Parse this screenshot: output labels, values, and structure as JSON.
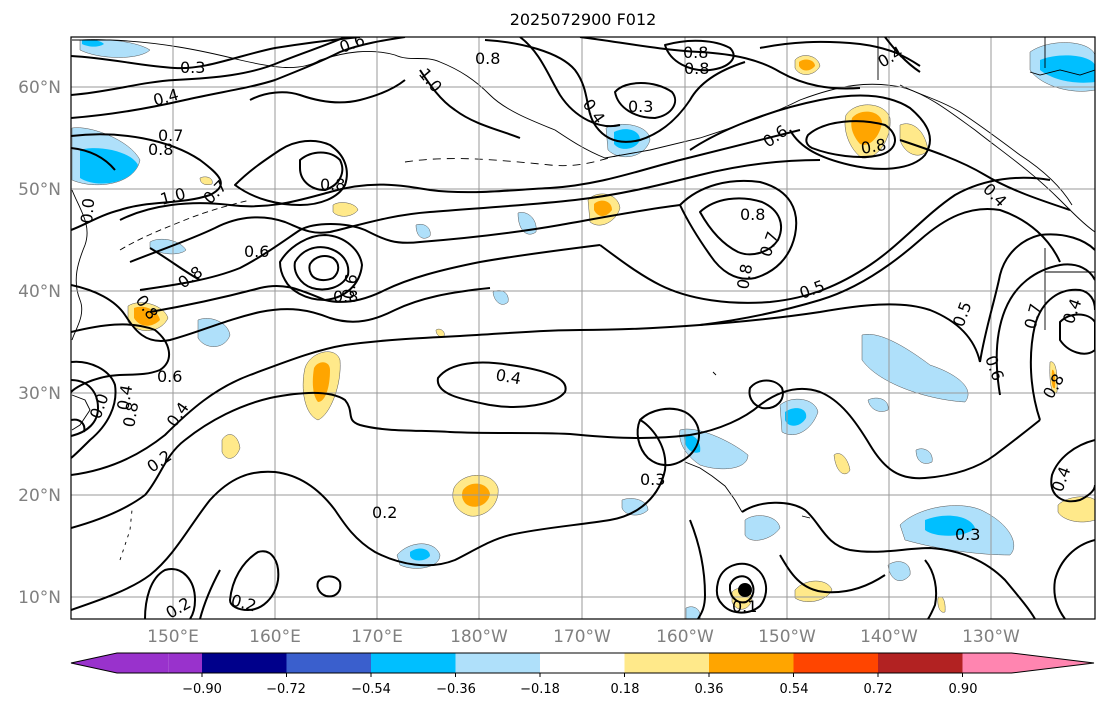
{
  "title": "2025072900 F012",
  "lat_labels": [
    "60°N",
    "50°N",
    "40°N",
    "30°N",
    "20°N",
    "10°N"
  ],
  "lon_labels": [
    "150°E",
    "160°E",
    "170°E",
    "180°W",
    "170°W",
    "160°W",
    "150°W",
    "140°W",
    "130°W"
  ],
  "colorbar": {
    "tick_labels": [
      "−0.90",
      "−0.72",
      "−0.54",
      "−0.36",
      "−0.18",
      "0.18",
      "0.36",
      "0.54",
      "0.72",
      "0.90"
    ],
    "colors": [
      "#9932cc",
      "#00008b",
      "#3a5fcd",
      "#00bfff",
      "#afe0fa",
      "#ffffff",
      "#ffe98a",
      "#ffa500",
      "#ff4500",
      "#b22222",
      "#ff85b0"
    ]
  },
  "contour_labels": [
    {
      "text": "0.3"
    },
    {
      "text": "0.6"
    },
    {
      "text": "0.8"
    },
    {
      "text": "1.0"
    },
    {
      "text": "0.8"
    },
    {
      "text": "0.4"
    },
    {
      "text": "0.4"
    },
    {
      "text": "0.3"
    },
    {
      "text": "0.4"
    },
    {
      "text": "0.7"
    },
    {
      "text": "0.8"
    },
    {
      "text": "1.0"
    },
    {
      "text": "0.8"
    },
    {
      "text": "0.7"
    },
    {
      "text": "0.8"
    },
    {
      "text": "0.6"
    },
    {
      "text": "0.8"
    },
    {
      "text": "0.8"
    },
    {
      "text": "0.6"
    },
    {
      "text": "0.6"
    },
    {
      "text": "0.8"
    },
    {
      "text": "0.7"
    },
    {
      "text": "0.8"
    },
    {
      "text": "0.5"
    },
    {
      "text": "0.8"
    },
    {
      "text": "0.5"
    },
    {
      "text": "0.6"
    },
    {
      "text": "0.7"
    },
    {
      "text": "0.4"
    },
    {
      "text": "0.4"
    },
    {
      "text": "0.6"
    },
    {
      "text": "0.4"
    },
    {
      "text": "0.2"
    },
    {
      "text": "0.8"
    },
    {
      "text": "0.8"
    },
    {
      "text": "0.3"
    },
    {
      "text": "0.2"
    },
    {
      "text": "0.3"
    },
    {
      "text": "0.4"
    },
    {
      "text": "0.8"
    },
    {
      "text": "0.2"
    },
    {
      "text": "0.2"
    },
    {
      "text": "0.1"
    },
    {
      "text": "0.0"
    },
    {
      "text": "0.4"
    },
    {
      "text": "0.4"
    },
    {
      "text": "0.0"
    }
  ]
}
